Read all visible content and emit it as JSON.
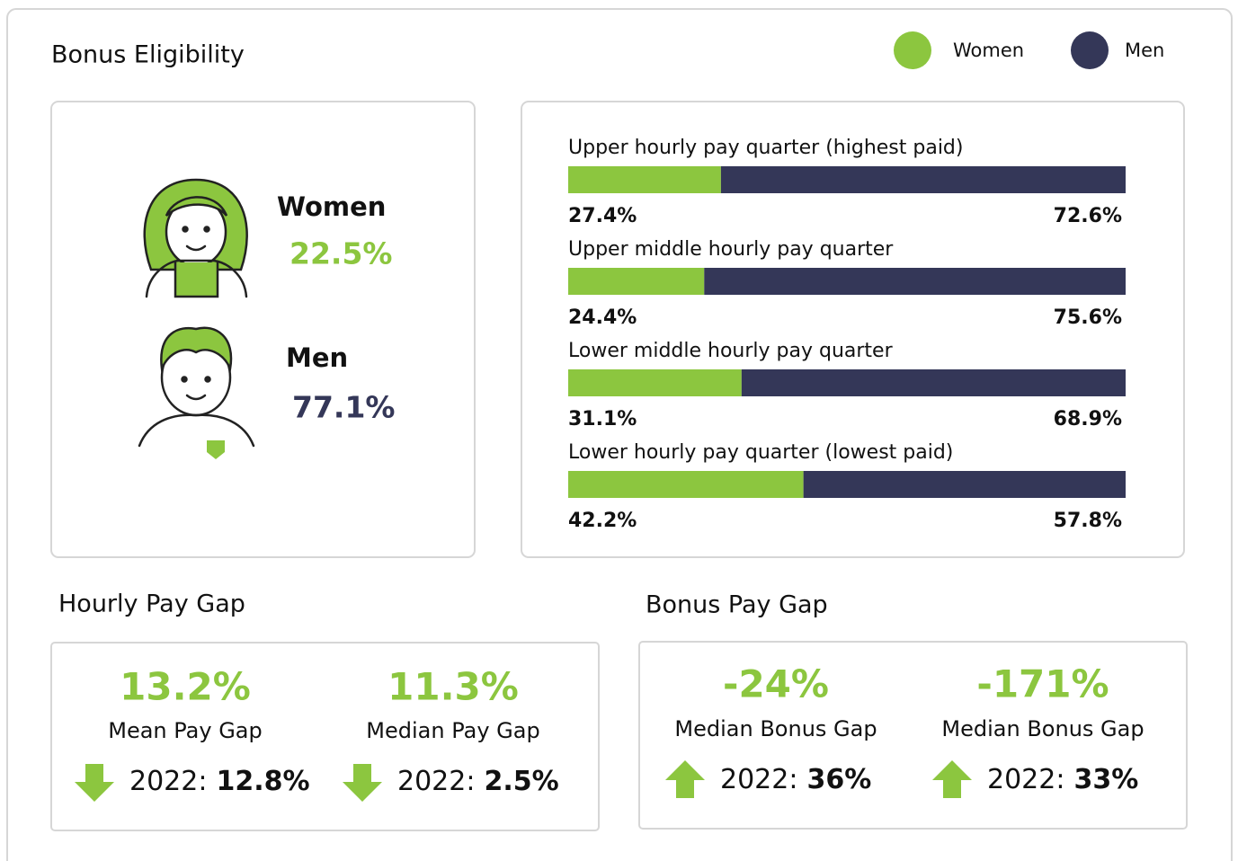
{
  "bonus_eligibility": {
    "title": "Bonus Eligibility",
    "women": {
      "label": "Women",
      "value": "22.5%"
    },
    "men": {
      "label": "Men",
      "value": "77.1%"
    }
  },
  "chart_data": {
    "type": "bar",
    "orientation": "horizontal",
    "stacked": true,
    "categories": [
      "Upper hourly pay quarter (highest paid)",
      "Upper middle hourly pay quarter",
      "Lower middle hourly pay quarter",
      "Lower hourly pay quarter (lowest paid)"
    ],
    "series": [
      {
        "name": "Women",
        "color": "#8cc63f",
        "values": [
          27.4,
          24.4,
          31.1,
          42.2
        ],
        "value_labels": [
          "27.4%",
          "24.4%",
          "31.1%",
          "42.2%"
        ]
      },
      {
        "name": "Men",
        "color": "#343758",
        "values": [
          72.6,
          75.6,
          68.9,
          57.8
        ],
        "value_labels": [
          "72.6%",
          "75.6%",
          "68.9%",
          "57.8%"
        ]
      }
    ],
    "xlim": [
      0,
      100
    ]
  },
  "hourly_pay_gap": {
    "title": "Hourly Pay Gap",
    "items": [
      {
        "value": "13.2%",
        "label": "Mean Pay Gap",
        "prev_prefix": "2022:",
        "prev": "12.8%",
        "direction": "down"
      },
      {
        "value": "11.3%",
        "label": "Median Pay Gap",
        "prev_prefix": "2022:",
        "prev": "2.5%",
        "direction": "down"
      }
    ]
  },
  "bonus_pay_gap": {
    "title": "Bonus Pay Gap",
    "items": [
      {
        "value": "-24%",
        "label": "Median Bonus Gap",
        "prev_prefix": "2022:",
        "prev": "36%",
        "direction": "up"
      },
      {
        "value": "-171%",
        "label": "Median Bonus Gap",
        "prev_prefix": "2022:",
        "prev": "33%",
        "direction": "up"
      }
    ]
  }
}
